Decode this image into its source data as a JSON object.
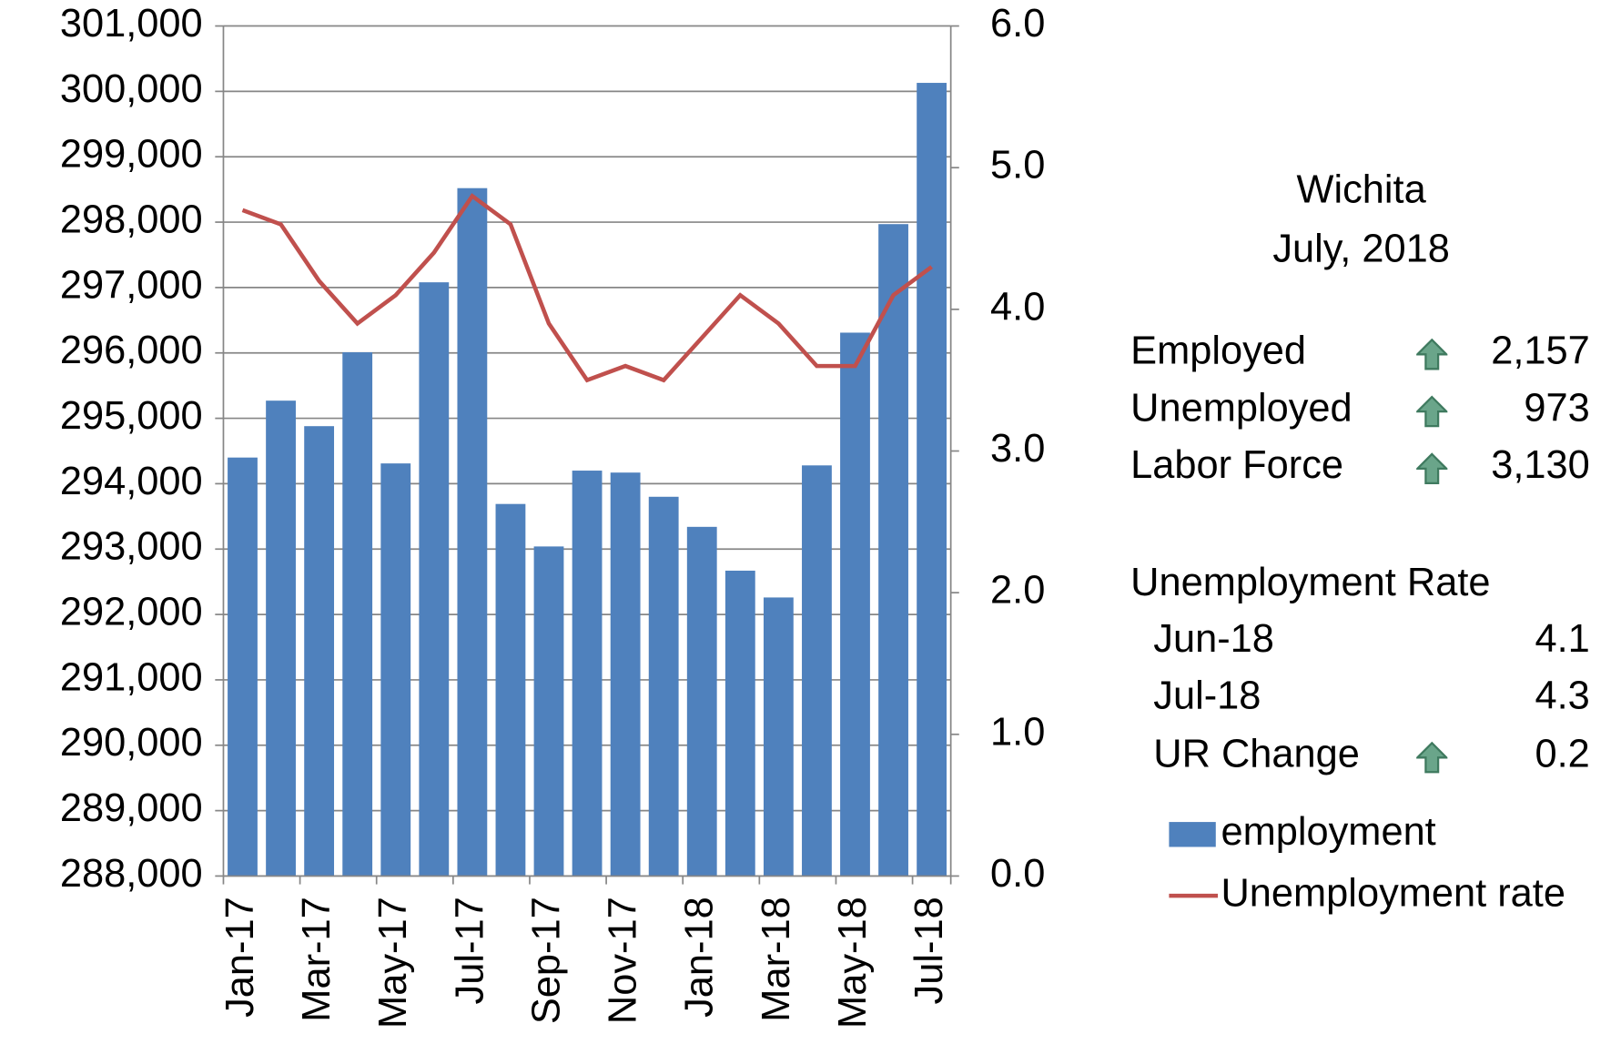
{
  "chart_data": {
    "type": "bar_line",
    "categories": [
      "Jan-17",
      null,
      "Mar-17",
      null,
      "May-17",
      null,
      "Jul-17",
      null,
      "Sep-17",
      null,
      "Nov-17",
      null,
      "Jan-18",
      null,
      "Mar-18",
      null,
      "May-18",
      null,
      "Jul-18"
    ],
    "series": [
      {
        "name": "employment",
        "type": "bar",
        "color": "#4f81bd",
        "values": [
          294400,
          295270,
          294880,
          296010,
          294310,
          297080,
          298520,
          293690,
          293040,
          294200,
          294170,
          293800,
          293340,
          292670,
          292260,
          294280,
          296310,
          297970,
          300130
        ]
      },
      {
        "name": "Unemployment rate",
        "type": "line",
        "axis": "y2",
        "color": "#c0504d",
        "values": [
          4.7,
          4.6,
          4.2,
          3.9,
          4.1,
          4.4,
          4.8,
          4.6,
          3.9,
          3.5,
          3.6,
          3.5,
          3.8,
          4.1,
          3.9,
          3.6,
          3.6,
          4.1,
          4.3
        ]
      }
    ],
    "ylim": [
      288000,
      301000
    ],
    "yticks": [
      {
        "value": 288000,
        "label": "288,000"
      },
      {
        "value": 289000,
        "label": "289,000"
      },
      {
        "value": 290000,
        "label": "290,000"
      },
      {
        "value": 291000,
        "label": "291,000"
      },
      {
        "value": 292000,
        "label": "292,000"
      },
      {
        "value": 293000,
        "label": "293,000"
      },
      {
        "value": 294000,
        "label": "294,000"
      },
      {
        "value": 295000,
        "label": "295,000"
      },
      {
        "value": 296000,
        "label": "296,000"
      },
      {
        "value": 297000,
        "label": "297,000"
      },
      {
        "value": 298000,
        "label": "298,000"
      },
      {
        "value": 299000,
        "label": "299,000"
      },
      {
        "value": 300000,
        "label": "300,000"
      },
      {
        "value": 301000,
        "label": "301,000"
      }
    ],
    "y2lim": [
      0,
      6
    ],
    "y2ticks": [
      {
        "value": 0,
        "label": "0.0"
      },
      {
        "value": 1,
        "label": "1.0"
      },
      {
        "value": 2,
        "label": "2.0"
      },
      {
        "value": 3,
        "label": "3.0"
      },
      {
        "value": 4,
        "label": "4.0"
      },
      {
        "value": 5,
        "label": "5.0"
      },
      {
        "value": 6,
        "label": "6.0"
      }
    ],
    "grid": true
  },
  "panel": {
    "title": "Wichita",
    "subtitle": "July, 2018",
    "rows": [
      [
        "Employed",
        "2,157"
      ],
      [
        "Unemployed",
        "973"
      ],
      [
        "Labor Force",
        "3,130"
      ]
    ],
    "rate_heading": "Unemployment Rate",
    "rate_rows": [
      [
        "Jun-18",
        "4.1"
      ],
      [
        "Jul-18",
        "4.3"
      ],
      [
        "UR Change",
        "0.2"
      ]
    ]
  }
}
